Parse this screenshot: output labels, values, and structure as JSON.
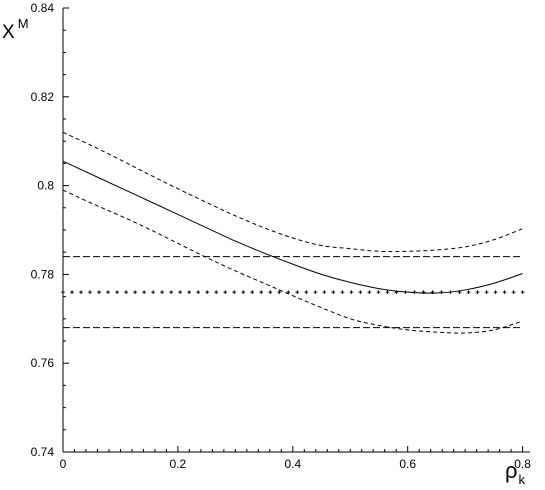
{
  "chart_data": {
    "type": "line",
    "title": "",
    "xlabel": "ρ",
    "xlabel_subscript": "k",
    "ylabel": "X",
    "ylabel_superscript": "M",
    "xlim": [
      0,
      0.8
    ],
    "ylim": [
      0.74,
      0.84
    ],
    "x_ticks": [
      0,
      0.2,
      0.4,
      0.6,
      0.8
    ],
    "x_tick_labels": [
      "0",
      "0.2",
      "0.4",
      "0.6",
      "0.8"
    ],
    "y_ticks": [
      0.74,
      0.76,
      0.78,
      0.8,
      0.82,
      0.84
    ],
    "y_tick_labels": [
      "0.74",
      "0.76",
      "0.78",
      "0.8",
      "0.82",
      "0.84"
    ],
    "grid": false,
    "legend": "none",
    "series": [
      {
        "style": "solid",
        "x": [
          0,
          0.05,
          0.1,
          0.15,
          0.2,
          0.25,
          0.3,
          0.35,
          0.4,
          0.45,
          0.5,
          0.55,
          0.6,
          0.65,
          0.7,
          0.75,
          0.8
        ],
        "y": [
          0.8055,
          0.8025,
          0.7995,
          0.7965,
          0.7935,
          0.7905,
          0.7875,
          0.7848,
          0.7823,
          0.78,
          0.7782,
          0.7768,
          0.776,
          0.7758,
          0.7765,
          0.778,
          0.7802
        ]
      },
      {
        "style": "dashed",
        "x": [
          0,
          0.05,
          0.1,
          0.15,
          0.2,
          0.25,
          0.3,
          0.35,
          0.4,
          0.45,
          0.5,
          0.55,
          0.6,
          0.65,
          0.7,
          0.75,
          0.8
        ],
        "y": [
          0.812,
          0.809,
          0.8058,
          0.8025,
          0.7993,
          0.7962,
          0.7932,
          0.7905,
          0.7882,
          0.7865,
          0.7858,
          0.7852,
          0.7852,
          0.7855,
          0.7862,
          0.7878,
          0.7903
        ]
      },
      {
        "style": "dashed",
        "x": [
          0,
          0.05,
          0.1,
          0.15,
          0.2,
          0.25,
          0.3,
          0.35,
          0.4,
          0.45,
          0.5,
          0.55,
          0.6,
          0.65,
          0.7,
          0.75,
          0.8
        ],
        "y": [
          0.799,
          0.796,
          0.7932,
          0.7902,
          0.787,
          0.7838,
          0.7808,
          0.778,
          0.7752,
          0.7725,
          0.77,
          0.7685,
          0.7675,
          0.767,
          0.7668,
          0.7675,
          0.7695
        ]
      },
      {
        "style": "longdash",
        "x": [
          0,
          0.8
        ],
        "y": [
          0.784,
          0.784
        ]
      },
      {
        "style": "longdash",
        "x": [
          0,
          0.8
        ],
        "y": [
          0.768,
          0.768
        ]
      },
      {
        "style": "crosses",
        "x": [
          0,
          0.8
        ],
        "y": [
          0.776,
          0.776
        ]
      }
    ]
  }
}
